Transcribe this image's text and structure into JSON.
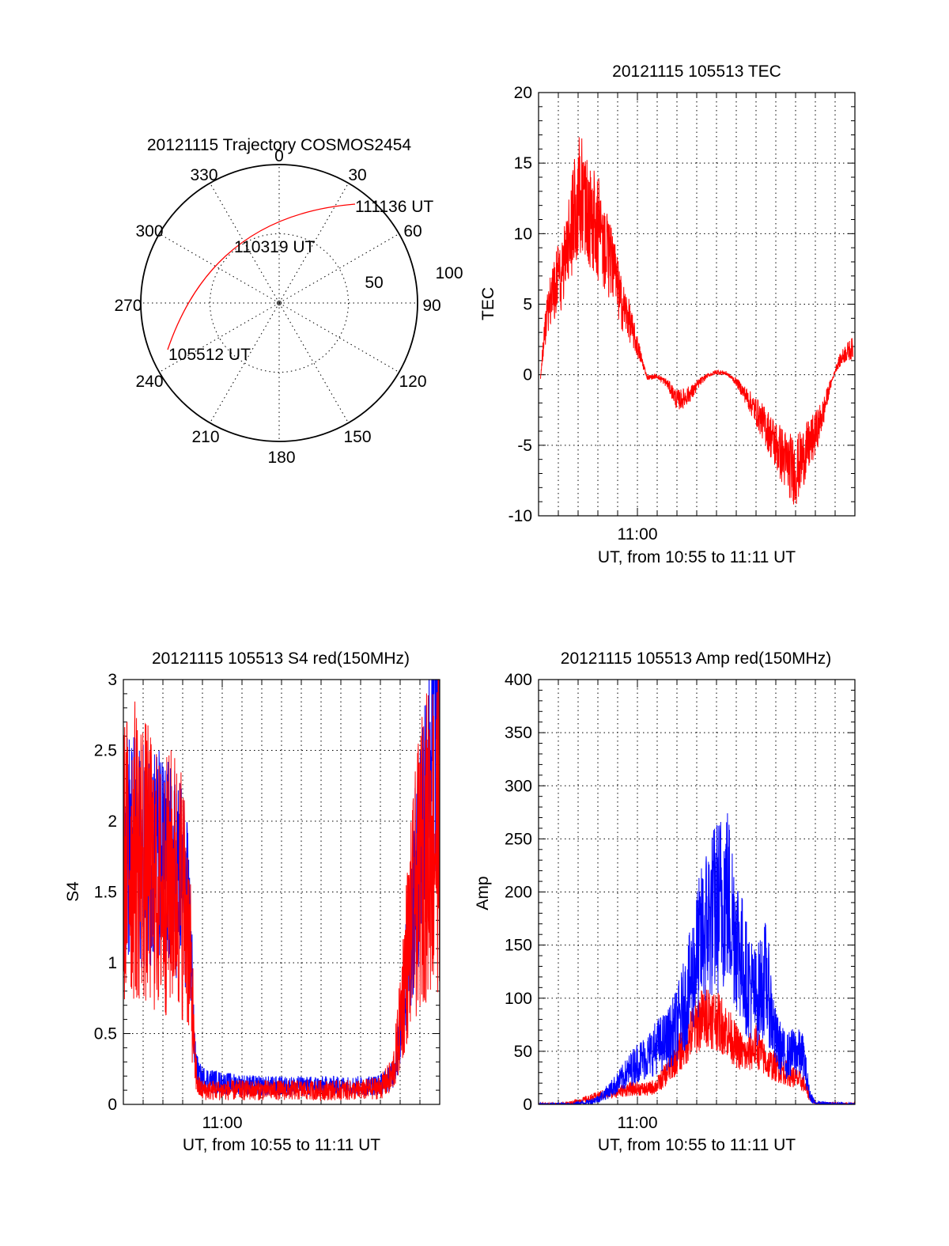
{
  "colors": {
    "red": "#ff0000",
    "blue": "#0000ff",
    "axis": "#000000"
  },
  "polar": {
    "title": "20121115 Trajectory COSMOS2454",
    "azimuth_labels": [
      "0",
      "30",
      "60",
      "90",
      "120",
      "150",
      "180",
      "210",
      "240",
      "270",
      "300",
      "330"
    ],
    "ring_labels": [
      "50",
      "100"
    ],
    "annotations": {
      "start": "105512 UT",
      "mid": "110319 UT",
      "end": "111136 UT"
    }
  },
  "chart_data": [
    {
      "type": "line",
      "title": "20121115 105513 TEC",
      "xlabel": "UT, from 10:55 to 11:11 UT",
      "ylabel": "TEC",
      "xlim_minutes": [
        0,
        16
      ],
      "xtick_label": "11:00",
      "xtick_minute": 5,
      "ylim": [
        -10,
        20
      ],
      "yticks": [
        "-10",
        "-5",
        "0",
        "5",
        "10",
        "15",
        "20"
      ],
      "series": [
        {
          "color": "red",
          "noise": 0.35,
          "x": [
            0.1,
            0.3,
            0.6,
            0.9,
            1.2,
            1.5,
            1.7,
            1.9,
            2.1,
            2.3,
            2.6,
            2.9,
            3.2,
            3.5,
            3.8,
            4.2,
            4.5,
            5.0,
            5.5,
            6.0,
            6.5,
            7.0,
            7.3,
            7.8,
            8.1,
            8.5,
            9.0,
            9.5,
            10.0,
            10.5,
            11.0,
            11.5,
            12.0,
            12.5,
            13.0,
            13.5,
            14.0,
            14.4,
            14.7,
            15.1,
            15.5,
            15.9
          ],
          "y": [
            -0.2,
            3.0,
            5.5,
            6.5,
            7.3,
            9.0,
            10.5,
            12.2,
            12.8,
            12.0,
            11.3,
            10.6,
            9.9,
            8.6,
            7.2,
            5.0,
            4.2,
            2.0,
            -0.2,
            -0.1,
            -0.6,
            -1.8,
            -1.7,
            -1.2,
            -0.6,
            -0.1,
            0.2,
            0.1,
            -0.5,
            -1.5,
            -2.6,
            -3.7,
            -5.0,
            -6.1,
            -6.9,
            -5.5,
            -4.2,
            -2.7,
            -1.0,
            0.7,
            1.5,
            1.9
          ]
        }
      ]
    },
    {
      "type": "line",
      "title": "20121115 105513 S4 red(150MHz)",
      "xlabel": "UT, from 10:55 to 11:11 UT",
      "ylabel": "S4",
      "xlim_minutes": [
        0,
        16
      ],
      "xtick_label": "11:00",
      "xtick_minute": 5,
      "ylim": [
        0,
        3
      ],
      "yticks": [
        "0",
        "0.5",
        "1",
        "1.5",
        "2",
        "2.5",
        "3"
      ],
      "series": [
        {
          "color": "blue",
          "noise": 0.45,
          "x": [
            0.0,
            0.5,
            1.0,
            1.5,
            2.0,
            2.5,
            3.0,
            3.3,
            3.5,
            3.6,
            3.8,
            4.0,
            5.0,
            6.0,
            7.0,
            8.0,
            9.0,
            10.0,
            11.0,
            12.0,
            13.0,
            13.6,
            13.9,
            14.3,
            14.8,
            15.2,
            15.6,
            16.0
          ],
          "y": [
            1.85,
            1.8,
            1.75,
            1.8,
            1.7,
            1.65,
            1.6,
            1.3,
            0.8,
            0.35,
            0.2,
            0.18,
            0.15,
            0.14,
            0.13,
            0.13,
            0.13,
            0.13,
            0.13,
            0.13,
            0.14,
            0.2,
            0.4,
            0.9,
            1.6,
            2.1,
            2.6,
            3.0
          ]
        },
        {
          "color": "red",
          "noise": 0.6,
          "x": [
            0.0,
            0.5,
            1.0,
            1.5,
            2.0,
            2.5,
            3.0,
            3.3,
            3.5,
            3.6,
            3.8,
            4.0,
            5.0,
            6.0,
            7.0,
            8.0,
            9.0,
            10.0,
            11.0,
            12.0,
            13.0,
            13.6,
            13.9,
            14.3,
            14.8,
            15.2,
            15.6,
            16.0
          ],
          "y": [
            1.7,
            1.8,
            1.75,
            1.6,
            1.5,
            1.6,
            1.5,
            1.2,
            0.7,
            0.3,
            0.12,
            0.1,
            0.1,
            0.1,
            0.1,
            0.1,
            0.1,
            0.1,
            0.1,
            0.1,
            0.12,
            0.2,
            0.45,
            1.0,
            1.5,
            1.8,
            1.9,
            2.0
          ]
        }
      ]
    },
    {
      "type": "line",
      "title": "20121115 105513 Amp red(150MHz)",
      "xlabel": "UT, from 10:55 to 11:11 UT",
      "ylabel": "Amp",
      "xlim_minutes": [
        0,
        16
      ],
      "xtick_label": "11:00",
      "xtick_minute": 5,
      "ylim": [
        0,
        400
      ],
      "yticks": [
        "0",
        "50",
        "100",
        "150",
        "200",
        "250",
        "300",
        "350",
        "400"
      ],
      "series": [
        {
          "color": "red",
          "noise": 0.35,
          "x": [
            0.0,
            1.0,
            1.5,
            2.0,
            2.5,
            3.0,
            3.5,
            4.0,
            4.5,
            5.0,
            5.5,
            6.0,
            6.5,
            7.0,
            7.5,
            8.0,
            8.5,
            9.0,
            9.5,
            10.0,
            10.5,
            11.0,
            11.5,
            12.0,
            12.5,
            13.0,
            13.4,
            13.7,
            14.0,
            16.0
          ],
          "y": [
            0,
            0,
            1,
            3,
            5,
            8,
            10,
            12,
            14,
            15,
            14,
            18,
            30,
            45,
            60,
            75,
            85,
            80,
            70,
            55,
            45,
            55,
            40,
            35,
            30,
            25,
            20,
            8,
            1,
            0
          ]
        },
        {
          "color": "blue",
          "noise": 0.45,
          "x": [
            0.0,
            1.0,
            1.5,
            2.0,
            2.5,
            3.0,
            3.5,
            4.0,
            4.5,
            5.0,
            5.5,
            6.0,
            6.5,
            7.0,
            7.5,
            8.0,
            8.5,
            9.0,
            9.5,
            10.0,
            10.5,
            11.0,
            11.5,
            12.0,
            12.5,
            13.0,
            13.4,
            13.7,
            14.0,
            16.0
          ],
          "y": [
            0,
            0,
            0,
            1,
            2,
            5,
            12,
            20,
            30,
            40,
            45,
            55,
            60,
            75,
            100,
            140,
            170,
            185,
            200,
            160,
            120,
            100,
            120,
            60,
            45,
            50,
            45,
            10,
            1,
            0
          ]
        }
      ]
    }
  ]
}
